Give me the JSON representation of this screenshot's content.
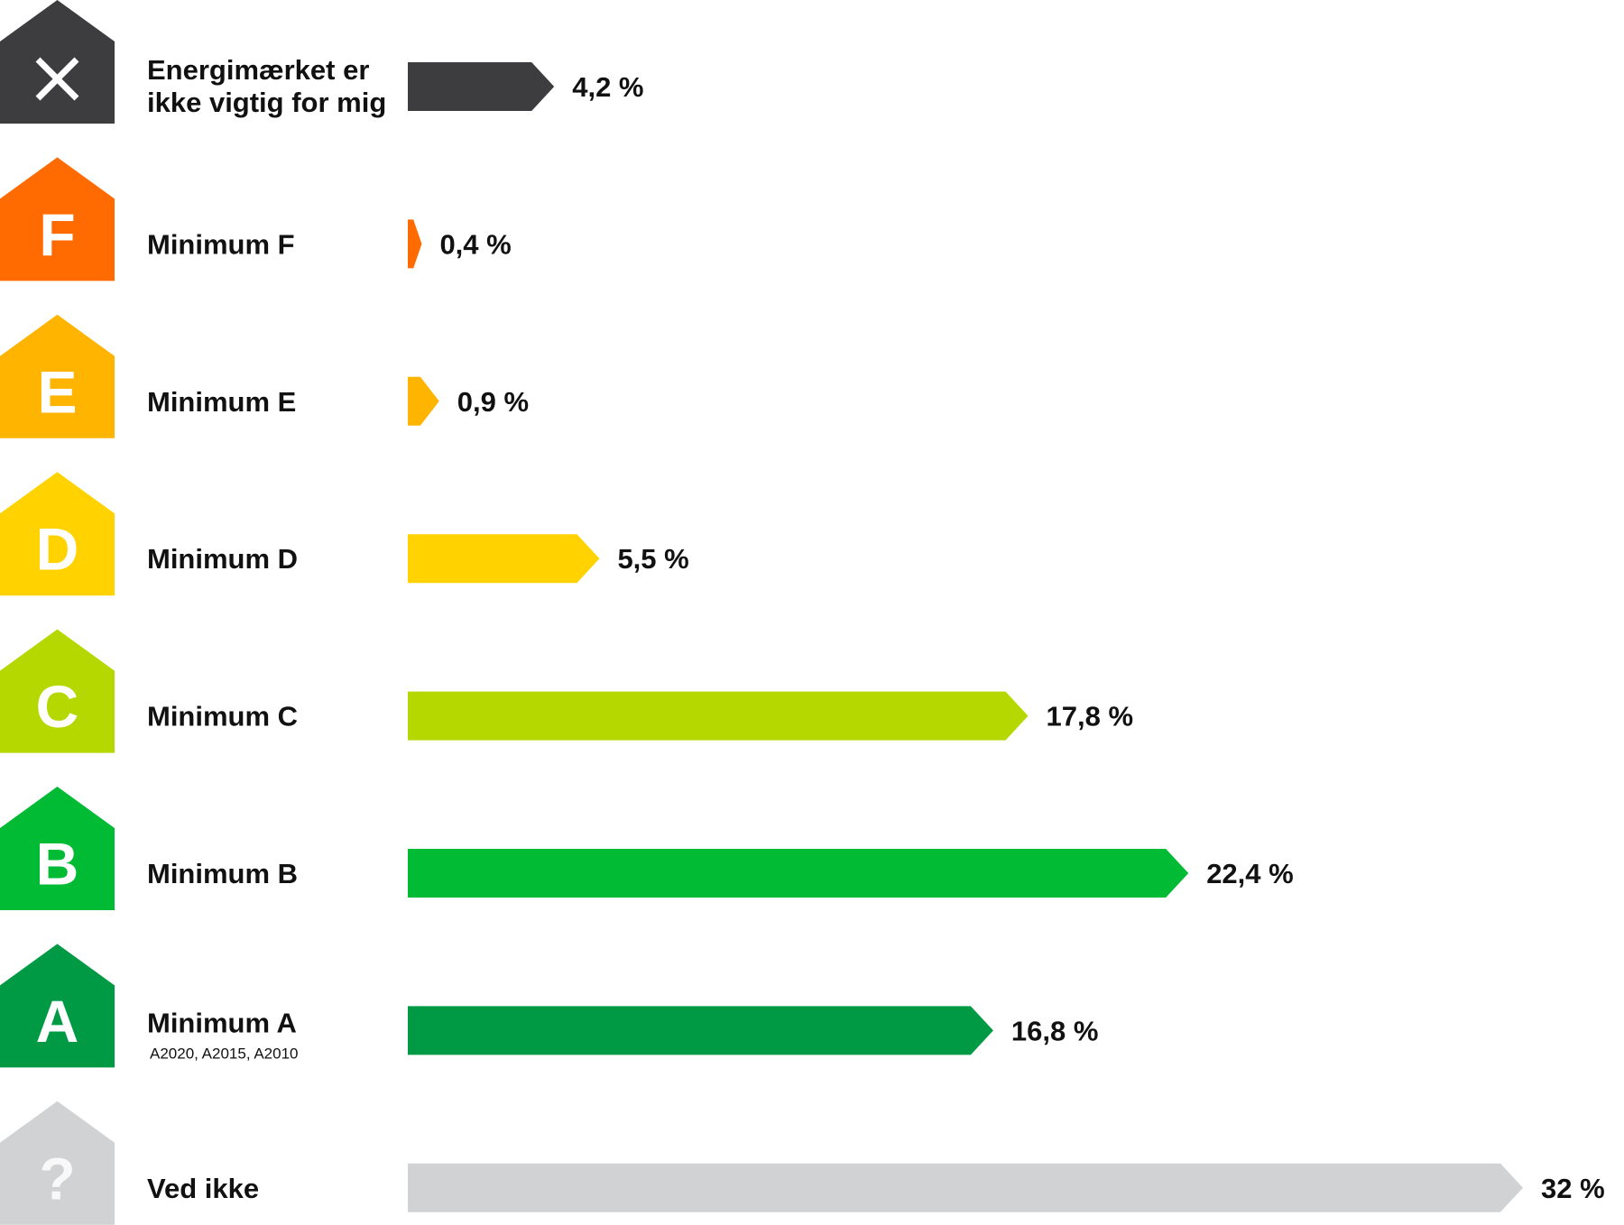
{
  "chart_data": {
    "type": "bar",
    "orientation": "horizontal",
    "value_suffix": " %",
    "rows": [
      {
        "badge": "×",
        "badge_icon": "close-icon",
        "label_lines": [
          "Energimærket er",
          "ikke vigtig for mig"
        ],
        "sublabel": "",
        "value": 4.2,
        "value_label": "4,2 %",
        "color": "#3d3d3f"
      },
      {
        "badge": "F",
        "label_lines": [
          "Minimum F"
        ],
        "sublabel": "",
        "value": 0.4,
        "value_label": "0,4 %",
        "color": "#ff6b00"
      },
      {
        "badge": "E",
        "label_lines": [
          "Minimum E"
        ],
        "sublabel": "",
        "value": 0.9,
        "value_label": "0,9 %",
        "color": "#ffb400"
      },
      {
        "badge": "D",
        "label_lines": [
          "Minimum D"
        ],
        "sublabel": "",
        "value": 5.5,
        "value_label": "5,5 %",
        "color": "#ffd200"
      },
      {
        "badge": "C",
        "label_lines": [
          "Minimum C"
        ],
        "sublabel": "",
        "value": 17.8,
        "value_label": "17,8 %",
        "color": "#b5d800"
      },
      {
        "badge": "B",
        "label_lines": [
          "Minimum B"
        ],
        "sublabel": "",
        "value": 22.4,
        "value_label": "22,4 %",
        "color": "#00bb33"
      },
      {
        "badge": "A",
        "label_lines": [
          "Minimum A"
        ],
        "sublabel": "A2020, A2015, A2010",
        "value": 16.8,
        "value_label": "16,8 %",
        "color": "#009a45"
      },
      {
        "badge": "?",
        "label_lines": [
          "Ved ikke"
        ],
        "sublabel": "",
        "value": 32,
        "value_label": "32 %",
        "color": "#d1d2d4"
      }
    ],
    "xlim": [
      0,
      32
    ],
    "grid": false,
    "legend": "none"
  }
}
